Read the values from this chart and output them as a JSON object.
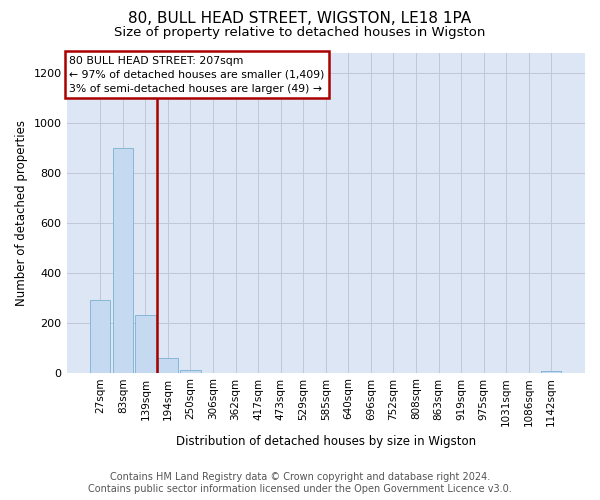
{
  "title": "80, BULL HEAD STREET, WIGSTON, LE18 1PA",
  "subtitle": "Size of property relative to detached houses in Wigston",
  "xlabel": "Distribution of detached houses by size in Wigston",
  "ylabel": "Number of detached properties",
  "categories": [
    "27sqm",
    "83sqm",
    "139sqm",
    "194sqm",
    "250sqm",
    "306sqm",
    "362sqm",
    "417sqm",
    "473sqm",
    "529sqm",
    "585sqm",
    "640sqm",
    "696sqm",
    "752sqm",
    "808sqm",
    "863sqm",
    "919sqm",
    "975sqm",
    "1031sqm",
    "1086sqm",
    "1142sqm"
  ],
  "bar_values": [
    290,
    900,
    230,
    60,
    10,
    0,
    0,
    0,
    0,
    0,
    0,
    0,
    0,
    0,
    0,
    0,
    0,
    0,
    0,
    0,
    5
  ],
  "bar_color": "#c5d9f1",
  "bar_edge_color": "#7ab0d4",
  "property_line_x": 2.5,
  "property_line_color": "#aa0000",
  "annotation_line1": "80 BULL HEAD STREET: 207sqm",
  "annotation_line2": "← 97% of detached houses are smaller (1,409)",
  "annotation_line3": "3% of semi-detached houses are larger (49) →",
  "annotation_box_edgecolor": "#aa0000",
  "ylim": [
    0,
    1280
  ],
  "yticks": [
    0,
    200,
    400,
    600,
    800,
    1000,
    1200
  ],
  "grid_color": "#c0c8d8",
  "bg_color": "#dce6f5",
  "footer_line1": "Contains HM Land Registry data © Crown copyright and database right 2024.",
  "footer_line2": "Contains public sector information licensed under the Open Government Licence v3.0."
}
